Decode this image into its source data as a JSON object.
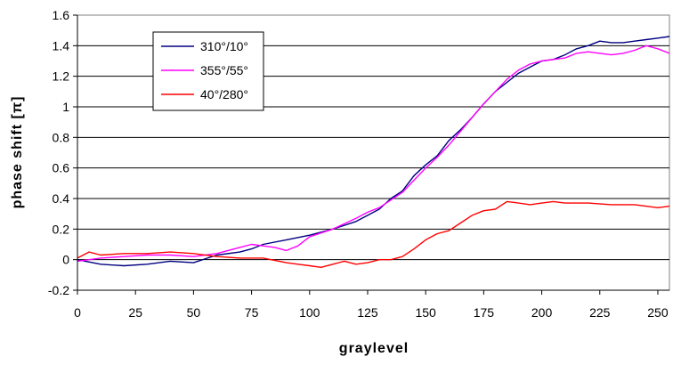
{
  "chart_data": {
    "type": "line",
    "title": "",
    "xlabel": "graylevel",
    "ylabel": "phase shift [π]",
    "xlim": [
      0,
      255
    ],
    "ylim": [
      -0.2,
      1.6
    ],
    "x_ticks": [
      0,
      25,
      50,
      75,
      100,
      125,
      150,
      175,
      200,
      225,
      250
    ],
    "y_ticks": [
      -0.2,
      0,
      0.2,
      0.4,
      0.6,
      0.8,
      1,
      1.2,
      1.4,
      1.6
    ],
    "y_tick_labels": [
      "-0.2",
      "0",
      "0.2",
      "0.4",
      "0.6",
      "0.8",
      "1",
      "1.2",
      "1.4",
      "1.6"
    ],
    "grid": "horizontal",
    "legend_position": "top-left",
    "series": [
      {
        "name": "310°/10°",
        "color": "#000080",
        "x": [
          0,
          10,
          20,
          30,
          40,
          50,
          60,
          70,
          75,
          80,
          90,
          100,
          110,
          120,
          125,
          130,
          135,
          140,
          145,
          150,
          155,
          160,
          165,
          170,
          175,
          180,
          185,
          190,
          195,
          200,
          205,
          210,
          215,
          220,
          225,
          230,
          235,
          240,
          245,
          250,
          255
        ],
        "y": [
          0.0,
          -0.03,
          -0.04,
          -0.03,
          -0.01,
          -0.02,
          0.03,
          0.05,
          0.07,
          0.1,
          0.13,
          0.16,
          0.2,
          0.25,
          0.29,
          0.33,
          0.4,
          0.45,
          0.55,
          0.62,
          0.68,
          0.78,
          0.85,
          0.93,
          1.02,
          1.1,
          1.16,
          1.22,
          1.26,
          1.3,
          1.31,
          1.34,
          1.38,
          1.4,
          1.43,
          1.42,
          1.42,
          1.43,
          1.44,
          1.45,
          1.46
        ]
      },
      {
        "name": "355°/55°",
        "color": "#ff00ff",
        "x": [
          0,
          10,
          20,
          30,
          40,
          50,
          60,
          70,
          75,
          80,
          85,
          90,
          95,
          100,
          110,
          120,
          125,
          130,
          135,
          140,
          145,
          150,
          155,
          160,
          165,
          170,
          175,
          180,
          185,
          190,
          195,
          200,
          205,
          210,
          215,
          220,
          225,
          230,
          235,
          240,
          245,
          250,
          255
        ],
        "y": [
          -0.01,
          0.01,
          0.02,
          0.03,
          0.03,
          0.02,
          0.04,
          0.08,
          0.1,
          0.09,
          0.08,
          0.06,
          0.09,
          0.15,
          0.2,
          0.27,
          0.31,
          0.34,
          0.39,
          0.44,
          0.52,
          0.6,
          0.67,
          0.75,
          0.84,
          0.93,
          1.02,
          1.1,
          1.18,
          1.24,
          1.28,
          1.3,
          1.31,
          1.32,
          1.35,
          1.36,
          1.35,
          1.34,
          1.35,
          1.37,
          1.4,
          1.38,
          1.35
        ]
      },
      {
        "name": "40°/280°",
        "color": "#ff0000",
        "x": [
          0,
          5,
          10,
          20,
          30,
          40,
          50,
          60,
          70,
          80,
          90,
          95,
          100,
          105,
          110,
          115,
          120,
          125,
          130,
          135,
          140,
          145,
          150,
          155,
          160,
          165,
          170,
          175,
          180,
          185,
          190,
          195,
          200,
          205,
          210,
          220,
          230,
          240,
          250,
          255
        ],
        "y": [
          0.01,
          0.05,
          0.03,
          0.04,
          0.04,
          0.05,
          0.04,
          0.02,
          0.01,
          0.01,
          -0.02,
          -0.03,
          -0.04,
          -0.05,
          -0.03,
          -0.01,
          -0.03,
          -0.02,
          0.0,
          0.0,
          0.02,
          0.07,
          0.13,
          0.17,
          0.19,
          0.24,
          0.29,
          0.32,
          0.33,
          0.38,
          0.37,
          0.36,
          0.37,
          0.38,
          0.37,
          0.37,
          0.36,
          0.36,
          0.34,
          0.35
        ]
      }
    ]
  }
}
